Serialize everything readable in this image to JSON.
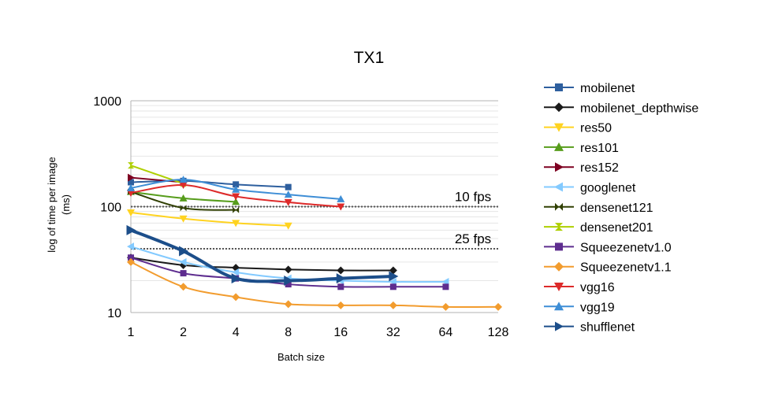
{
  "chart_data": {
    "type": "line",
    "title": "TX1",
    "xlabel": "Batch size",
    "ylabel_line1": "log of time per image",
    "ylabel_line2": "(ms)",
    "yscale": "log",
    "ylim": [
      10,
      1000
    ],
    "yticks": [
      10,
      100,
      1000
    ],
    "ytick_labels": [
      "10",
      "100",
      "1000"
    ],
    "x": [
      1,
      2,
      4,
      8,
      16,
      32,
      64,
      128
    ],
    "xtick_labels": [
      "1",
      "2",
      "4",
      "8",
      "16",
      "32",
      "64",
      "128"
    ],
    "reference_lines": [
      {
        "label": "10 fps",
        "value": 100
      },
      {
        "label": "25 fps",
        "value": 40
      }
    ],
    "legend_position": "right",
    "series": [
      {
        "name": "mobilenet",
        "color": "#2E5F9E",
        "marker": "square",
        "values": [
          170,
          175,
          162,
          153,
          null,
          null,
          null,
          null
        ]
      },
      {
        "name": "mobilenet_depthwise",
        "color": "#1a1a1a",
        "marker": "diamond",
        "values": [
          33,
          28,
          26.5,
          25.5,
          25,
          25,
          null,
          null
        ]
      },
      {
        "name": "res50",
        "color": "#FFD320",
        "marker": "triangle-down",
        "values": [
          88,
          77,
          70,
          66,
          null,
          null,
          null,
          null
        ]
      },
      {
        "name": "res101",
        "color": "#579D1C",
        "marker": "triangle-up",
        "values": [
          138,
          120,
          111,
          null,
          null,
          null,
          null,
          null
        ]
      },
      {
        "name": "res152",
        "color": "#7E0021",
        "marker": "triangle-right",
        "values": [
          188,
          170,
          null,
          null,
          null,
          null,
          null,
          null
        ]
      },
      {
        "name": "googlenet",
        "color": "#83CAFF",
        "marker": "triangle-left",
        "values": [
          42,
          30,
          24,
          21,
          20,
          19.5,
          19.5,
          null
        ]
      },
      {
        "name": "densenet121",
        "color": "#314004",
        "marker": "bowtie",
        "values": [
          138,
          97,
          93,
          null,
          null,
          null,
          null,
          null
        ]
      },
      {
        "name": "densenet201",
        "color": "#AECF00",
        "marker": "hourglass",
        "values": [
          245,
          165,
          null,
          null,
          null,
          null,
          null,
          null
        ]
      },
      {
        "name": "Squeezenetv1.0",
        "color": "#5E2D8F",
        "marker": "square",
        "values": [
          33,
          23.5,
          21,
          18.5,
          17.5,
          17.5,
          17.5,
          null
        ]
      },
      {
        "name": "Squeezenetv1.1",
        "color": "#F29C2E",
        "marker": "diamond",
        "values": [
          30,
          17.5,
          14,
          12,
          11.7,
          11.7,
          11.3,
          11.3
        ]
      },
      {
        "name": "vgg16",
        "color": "#DD2A2A",
        "marker": "triangle-down",
        "values": [
          135,
          160,
          125,
          110,
          100,
          null,
          null,
          null
        ]
      },
      {
        "name": "vgg19",
        "color": "#3E8ED6",
        "marker": "triangle-up",
        "values": [
          150,
          180,
          145,
          130,
          118,
          null,
          null,
          null
        ]
      },
      {
        "name": "shufflenet",
        "color": "#1C4E8A",
        "marker": "triangle-right",
        "values": [
          60,
          38,
          21,
          20,
          21,
          22,
          null,
          null
        ]
      }
    ]
  }
}
